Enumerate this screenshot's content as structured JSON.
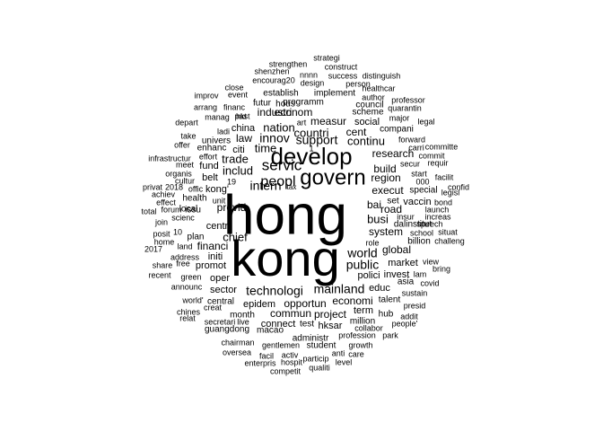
{
  "word_cloud": {
    "text_color": "#000000",
    "background": "#ffffff",
    "words": [
      {
        "text": "hong"
      },
      {
        "text": "kong"
      },
      {
        "text": "develop"
      },
      {
        "text": "govern"
      },
      {
        "text": "servic"
      },
      {
        "text": "peopl"
      },
      {
        "text": "intern"
      },
      {
        "text": "technologi"
      },
      {
        "text": "world"
      },
      {
        "text": "public"
      },
      {
        "text": "mainland"
      },
      {
        "text": "support"
      },
      {
        "text": "innov"
      },
      {
        "text": "nation"
      },
      {
        "text": "includ"
      },
      {
        "text": "trade"
      },
      {
        "text": "time"
      },
      {
        "text": "countri"
      },
      {
        "text": "continu"
      },
      {
        "text": "cent"
      },
      {
        "text": "measur"
      },
      {
        "text": "econom"
      },
      {
        "text": "industri"
      },
      {
        "text": "research"
      },
      {
        "text": "region"
      },
      {
        "text": "build"
      },
      {
        "text": "execut"
      },
      {
        "text": "road"
      },
      {
        "text": "bai"
      },
      {
        "text": "busi"
      },
      {
        "text": "system"
      },
      {
        "text": "global"
      },
      {
        "text": "market"
      },
      {
        "text": "polici"
      },
      {
        "text": "invest"
      },
      {
        "text": "educ"
      },
      {
        "text": "economi"
      },
      {
        "text": "project"
      },
      {
        "text": "commun"
      },
      {
        "text": "opportun"
      },
      {
        "text": "epidem"
      },
      {
        "text": "chief"
      },
      {
        "text": "centr"
      },
      {
        "text": "financi"
      },
      {
        "text": "initi"
      },
      {
        "text": "promot"
      },
      {
        "text": "oper"
      },
      {
        "text": "sector"
      },
      {
        "text": "provid"
      },
      {
        "text": "kong'"
      },
      {
        "text": "belt"
      },
      {
        "text": "fund"
      },
      {
        "text": "health"
      },
      {
        "text": "local"
      },
      {
        "text": "law"
      },
      {
        "text": "citi"
      },
      {
        "text": "china"
      },
      {
        "text": "univers"
      },
      {
        "text": "enhanc"
      },
      {
        "text": "connect"
      },
      {
        "text": "test"
      },
      {
        "text": "hksar"
      },
      {
        "text": "term"
      },
      {
        "text": "million"
      },
      {
        "text": "month"
      },
      {
        "text": "central"
      },
      {
        "text": "plan"
      },
      {
        "text": "social"
      },
      {
        "text": "compani"
      },
      {
        "text": "scheme"
      },
      {
        "text": "council"
      },
      {
        "text": "set"
      },
      {
        "text": "vaccin"
      },
      {
        "text": "special"
      },
      {
        "text": "dalinstitut"
      },
      {
        "text": "billion"
      },
      {
        "text": "hub"
      },
      {
        "text": "talent"
      },
      {
        "text": "asia"
      },
      {
        "text": "lam"
      },
      {
        "text": "guangdong"
      },
      {
        "text": "macao"
      },
      {
        "text": "administr"
      },
      {
        "text": "student"
      },
      {
        "text": "profession"
      },
      {
        "text": "park"
      },
      {
        "text": "growth"
      },
      {
        "text": "chairman"
      },
      {
        "text": "gentlemen"
      },
      {
        "text": "oversea"
      },
      {
        "text": "facil"
      },
      {
        "text": "activ"
      },
      {
        "text": "anti"
      },
      {
        "text": "care"
      },
      {
        "text": "enterpris"
      },
      {
        "text": "hospit"
      },
      {
        "text": "particip"
      },
      {
        "text": "level"
      },
      {
        "text": "competit"
      },
      {
        "text": "qualiti"
      },
      {
        "text": "collabor"
      },
      {
        "text": "secretari"
      },
      {
        "text": "live"
      },
      {
        "text": "creat"
      },
      {
        "text": "chines"
      },
      {
        "text": "relat"
      },
      {
        "text": "world'"
      },
      {
        "text": "addit"
      },
      {
        "text": "people'"
      },
      {
        "text": "presid"
      },
      {
        "text": "sustain"
      },
      {
        "text": "covid"
      },
      {
        "text": "view"
      },
      {
        "text": "bring"
      },
      {
        "text": "challeng"
      },
      {
        "text": "situat"
      },
      {
        "text": "school"
      },
      {
        "text": "increas"
      },
      {
        "text": "insur"
      },
      {
        "text": "bond"
      },
      {
        "text": "launch"
      },
      {
        "text": "legisl"
      },
      {
        "text": "000"
      },
      {
        "text": "start"
      },
      {
        "text": "facilit"
      },
      {
        "text": "confid"
      },
      {
        "text": "speech"
      },
      {
        "text": "requir"
      },
      {
        "text": "commit"
      },
      {
        "text": "committe"
      },
      {
        "text": "secur"
      },
      {
        "text": "carri"
      },
      {
        "text": "forward"
      },
      {
        "text": "legal"
      },
      {
        "text": "major"
      },
      {
        "text": "quarantin"
      },
      {
        "text": "professor"
      },
      {
        "text": "author"
      },
      {
        "text": "healthcar"
      },
      {
        "text": "distinguish"
      },
      {
        "text": "person"
      },
      {
        "text": "implement"
      },
      {
        "text": "programm"
      },
      {
        "text": "design"
      },
      {
        "text": "success"
      },
      {
        "text": "construct"
      },
      {
        "text": "strategi"
      },
      {
        "text": "strengthen"
      },
      {
        "text": "nnnn"
      },
      {
        "text": "encourag20"
      },
      {
        "text": "shenzhen"
      },
      {
        "text": "establish"
      },
      {
        "text": "hous"
      },
      {
        "text": "futur"
      },
      {
        "text": "close"
      },
      {
        "text": "event"
      },
      {
        "text": "improv"
      },
      {
        "text": "arrang"
      },
      {
        "text": "financ"
      },
      {
        "text": "hkt"
      },
      {
        "text": "manag"
      },
      {
        "text": "past"
      },
      {
        "text": "depart"
      },
      {
        "text": "ladi"
      },
      {
        "text": "art"
      },
      {
        "text": "take"
      },
      {
        "text": "offer"
      },
      {
        "text": "infrastructur"
      },
      {
        "text": "meet"
      },
      {
        "text": "organis"
      },
      {
        "text": "effort"
      },
      {
        "text": "offic"
      },
      {
        "text": "cultur"
      },
      {
        "text": "privat"
      },
      {
        "text": "2018"
      },
      {
        "text": "achiev"
      },
      {
        "text": "effect"
      },
      {
        "text": "total"
      },
      {
        "text": "forum"
      },
      {
        "text": "issu"
      },
      {
        "text": "unit"
      },
      {
        "text": "19"
      },
      {
        "text": "tax"
      },
      {
        "text": "1"
      },
      {
        "text": "join"
      },
      {
        "text": "scienc"
      },
      {
        "text": "posit"
      },
      {
        "text": "10"
      },
      {
        "text": "home"
      },
      {
        "text": "land"
      },
      {
        "text": "2017"
      },
      {
        "text": "address"
      },
      {
        "text": "share"
      },
      {
        "text": "free"
      },
      {
        "text": "announc"
      },
      {
        "text": "recent"
      },
      {
        "text": "green"
      },
      {
        "text": "role"
      }
    ]
  }
}
